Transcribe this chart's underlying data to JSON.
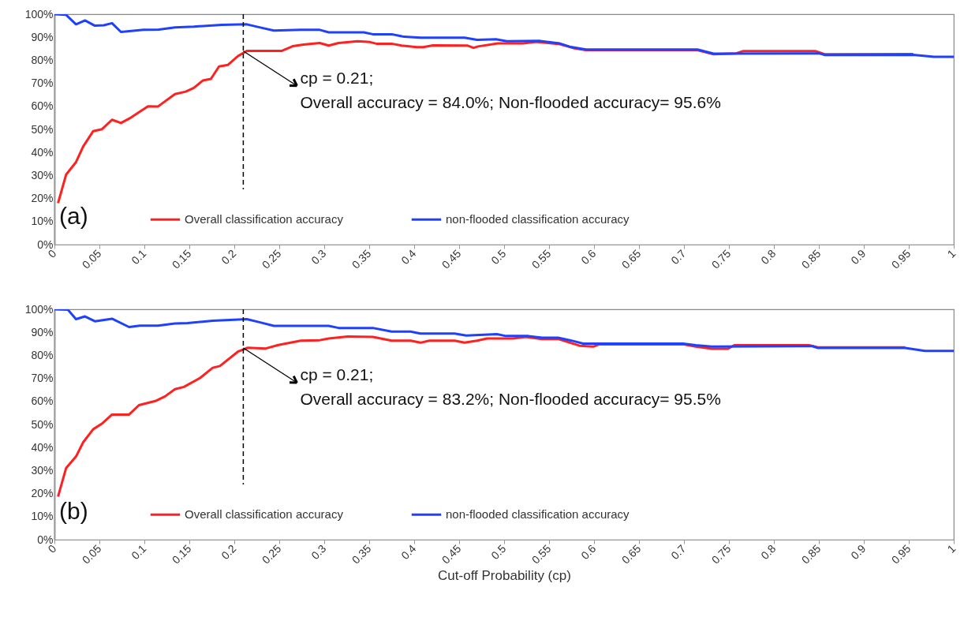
{
  "chart_data": [
    {
      "type": "line",
      "xlim": [
        0,
        1
      ],
      "ylim": [
        0,
        100
      ],
      "xticks": [
        0,
        0.05,
        0.1,
        0.15,
        0.2,
        0.25,
        0.3,
        0.35,
        0.4,
        0.45,
        0.5,
        0.55,
        0.6,
        0.65,
        0.7,
        0.75,
        0.8,
        0.85,
        0.9,
        0.95,
        1
      ],
      "yticks": [
        {
          "value": 0,
          "label": "0%"
        },
        {
          "value": 10,
          "label": "10%"
        },
        {
          "value": 20,
          "label": "20%"
        },
        {
          "value": 30,
          "label": "30%"
        },
        {
          "value": 40,
          "label": "40%"
        },
        {
          "value": 50,
          "label": "50%"
        },
        {
          "value": 60,
          "label": "60%"
        },
        {
          "value": 70,
          "label": "70%"
        },
        {
          "value": 80,
          "label": "80%"
        },
        {
          "value": 90,
          "label": "90%"
        },
        {
          "value": 100,
          "label": "100%"
        }
      ],
      "grid": false,
      "legend": "bottom left",
      "series": [
        {
          "name": "Overall classification accuracy",
          "color": "#ff2020",
          "x": [
            0.004,
            0.013,
            0.024,
            0.032,
            0.043,
            0.053,
            0.064,
            0.074,
            0.085,
            0.104,
            0.115,
            0.134,
            0.146,
            0.155,
            0.165,
            0.174,
            0.183,
            0.193,
            0.204,
            0.214,
            0.253,
            0.265,
            0.277,
            0.295,
            0.305,
            0.316,
            0.337,
            0.351,
            0.358,
            0.375,
            0.386,
            0.403,
            0.41,
            0.421,
            0.459,
            0.466,
            0.471,
            0.493,
            0.521,
            0.536,
            0.562,
            0.577,
            0.591,
            0.715,
            0.733,
            0.758,
            0.766,
            0.846,
            0.857,
            0.955
          ],
          "values": [
            18,
            30.4,
            35.8,
            42.6,
            49.2,
            50.1,
            54.2,
            52.8,
            55.1,
            60,
            59.9,
            65.3,
            66.4,
            68,
            71.2,
            71.9,
            77.3,
            78,
            81.8,
            84.1,
            84.1,
            86.1,
            86.8,
            87.5,
            86.4,
            87.5,
            88.3,
            87.9,
            87.2,
            87.2,
            86.4,
            85.7,
            85.7,
            86.5,
            86.4,
            85.4,
            86,
            87.3,
            87.3,
            88,
            87,
            85.3,
            84.4,
            84.4,
            82.6,
            83,
            84,
            84,
            82.6,
            82.7
          ]
        },
        {
          "name": "non-flooded classification accuracy",
          "color": "#2040ff",
          "x": [
            0,
            0.013,
            0.024,
            0.034,
            0.045,
            0.055,
            0.064,
            0.074,
            0.099,
            0.116,
            0.134,
            0.155,
            0.186,
            0.214,
            0.228,
            0.244,
            0.274,
            0.295,
            0.305,
            0.344,
            0.354,
            0.375,
            0.389,
            0.407,
            0.456,
            0.47,
            0.491,
            0.503,
            0.54,
            0.562,
            0.573,
            0.591,
            0.715,
            0.733,
            0.85,
            0.857,
            0.955,
            0.978,
            1.0
          ],
          "values": [
            100,
            99.7,
            95.6,
            97.3,
            95,
            95.2,
            96.1,
            92.3,
            93.2,
            93.3,
            94.3,
            94.6,
            95.4,
            95.6,
            94.3,
            92.9,
            93.2,
            93.2,
            92.1,
            92.1,
            91.3,
            91.3,
            90.2,
            89.8,
            89.8,
            88.9,
            89.1,
            88.3,
            88.4,
            87.3,
            85.9,
            84.7,
            84.7,
            82.9,
            83,
            82.3,
            82.4,
            81.5,
            81.5
          ]
        }
      ],
      "ref_lines": [
        {
          "axis": "x",
          "value": 0.21,
          "color": "#000000",
          "line_style": "dashed"
        }
      ],
      "annotations": [
        "(a)",
        {
          "text": "cp = 0.21;\nOverall accuracy = 84.0%; Non-flooded accuracy= 95.6%",
          "x": 0.21,
          "y": 84.0
        }
      ]
    },
    {
      "type": "line",
      "xlim": [
        0,
        1
      ],
      "ylim": [
        0,
        100
      ],
      "xlabel": "Cut-off Probability (cp)",
      "xticks": [
        0,
        0.05,
        0.1,
        0.15,
        0.2,
        0.25,
        0.3,
        0.35,
        0.4,
        0.45,
        0.5,
        0.55,
        0.6,
        0.65,
        0.7,
        0.75,
        0.8,
        0.85,
        0.9,
        0.95,
        1
      ],
      "yticks": [
        {
          "value": 0,
          "label": "0%"
        },
        {
          "value": 10,
          "label": "10%"
        },
        {
          "value": 20,
          "label": "20%"
        },
        {
          "value": 30,
          "label": "30%"
        },
        {
          "value": 40,
          "label": "40%"
        },
        {
          "value": 50,
          "label": "50%"
        },
        {
          "value": 60,
          "label": "60%"
        },
        {
          "value": 70,
          "label": "70%"
        },
        {
          "value": 80,
          "label": "80%"
        },
        {
          "value": 90,
          "label": "90%"
        },
        {
          "value": 100,
          "label": "100%"
        }
      ],
      "grid": false,
      "legend": "bottom left",
      "series": [
        {
          "name": "Overall classification accuracy",
          "color": "#ff2020",
          "x": [
            0.004,
            0.013,
            0.024,
            0.032,
            0.043,
            0.053,
            0.064,
            0.083,
            0.094,
            0.113,
            0.123,
            0.134,
            0.144,
            0.162,
            0.176,
            0.184,
            0.204,
            0.215,
            0.235,
            0.249,
            0.274,
            0.295,
            0.305,
            0.326,
            0.354,
            0.375,
            0.396,
            0.407,
            0.417,
            0.445,
            0.456,
            0.47,
            0.481,
            0.51,
            0.524,
            0.542,
            0.56,
            0.584,
            0.599,
            0.606,
            0.699,
            0.713,
            0.731,
            0.749,
            0.756,
            0.839,
            0.849,
            0.946
          ],
          "values": [
            18.7,
            31.1,
            36.1,
            42.3,
            47.9,
            50.4,
            54.3,
            54.3,
            58.4,
            60.3,
            62.2,
            65.3,
            66.3,
            70.2,
            74.6,
            75.4,
            81.6,
            83.3,
            83,
            84.5,
            86.4,
            86.6,
            87.3,
            88.2,
            88,
            86.4,
            86.4,
            85.5,
            86.4,
            86.4,
            85.5,
            86.4,
            87.3,
            87.3,
            88,
            87.1,
            87.1,
            84.2,
            83.8,
            84.8,
            84.8,
            83.8,
            82.9,
            82.9,
            84.4,
            84.4,
            83.5,
            83.5
          ]
        },
        {
          "name": "non-flooded classification accuracy",
          "color": "#2040ff",
          "x": [
            0,
            0.015,
            0.024,
            0.034,
            0.045,
            0.064,
            0.083,
            0.095,
            0.115,
            0.134,
            0.148,
            0.176,
            0.214,
            0.228,
            0.244,
            0.305,
            0.316,
            0.354,
            0.375,
            0.396,
            0.407,
            0.445,
            0.458,
            0.492,
            0.502,
            0.527,
            0.542,
            0.56,
            0.574,
            0.588,
            0.699,
            0.713,
            0.731,
            0.843,
            0.849,
            0.946,
            0.968,
            1.0
          ],
          "values": [
            100,
            99.8,
            95.7,
            96.9,
            94.8,
            95.9,
            92.3,
            92.9,
            92.9,
            93.8,
            94,
            95,
            95.7,
            94.4,
            92.8,
            92.8,
            91.9,
            91.9,
            90.3,
            90.3,
            89.5,
            89.5,
            88.6,
            89.2,
            88.4,
            88.4,
            87.7,
            87.7,
            86.5,
            85.1,
            85.1,
            84.4,
            83.8,
            84,
            83.2,
            83.2,
            81.9,
            81.9
          ]
        }
      ],
      "ref_lines": [
        {
          "axis": "x",
          "value": 0.21,
          "color": "#000000",
          "line_style": "dashed"
        }
      ],
      "annotations": [
        "(b)",
        {
          "text": "cp = 0.21;\nOverall accuracy = 83.2%; Non-flooded accuracy= 95.5%",
          "x": 0.21,
          "y": 83.2
        }
      ]
    }
  ]
}
